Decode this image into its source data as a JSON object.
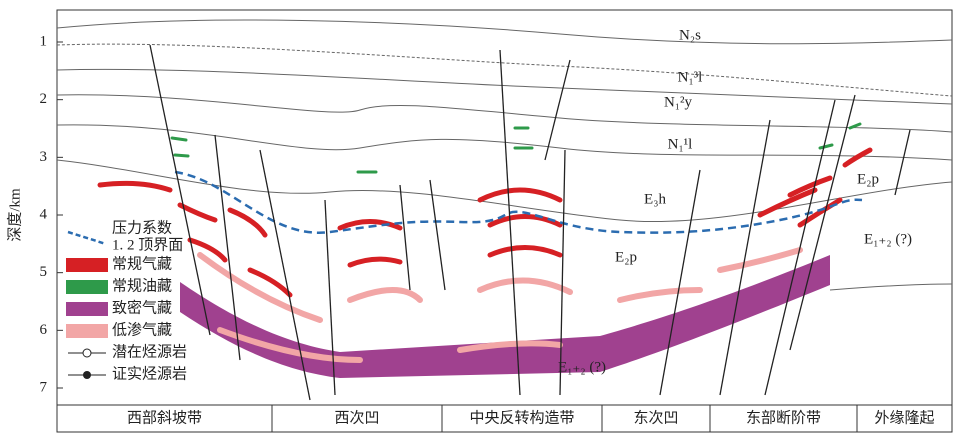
{
  "axis": {
    "label": "深度/km",
    "ticks": [
      1,
      2,
      3,
      4,
      5,
      6,
      7
    ]
  },
  "formations": [
    "N₂s",
    "N₁³l",
    "N₁²y",
    "N₁¹l",
    "E₃h",
    "E₂p",
    "E₁₊₂ (?)",
    "E₂p",
    "E₁₊₂ (?)"
  ],
  "legend": [
    {
      "label": [
        "压力系数",
        "1. 2 顶界面"
      ]
    },
    {
      "label": "常规气藏"
    },
    {
      "label": "常规油藏"
    },
    {
      "label": "致密气藏"
    },
    {
      "label": "低渗气藏"
    },
    {
      "label": "潜在烃源岩"
    },
    {
      "label": "证实烃源岩"
    }
  ],
  "regions": [
    "西部斜坡带",
    "西次凹",
    "中央反转构造带",
    "东次凹",
    "东部断阶带",
    "外缘隆起"
  ]
}
